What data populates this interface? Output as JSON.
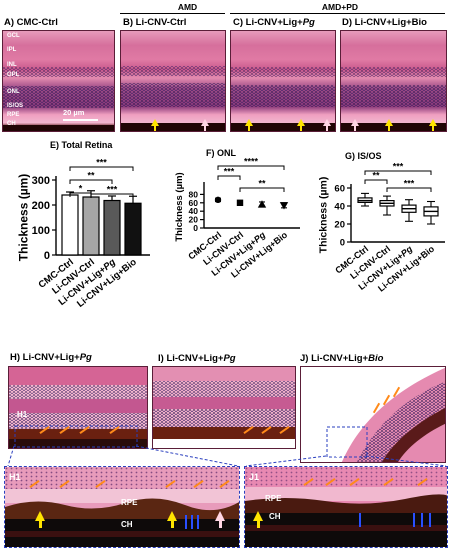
{
  "top_panels": {
    "group_amd": "AMD",
    "group_amd_pd": "AMD+PD",
    "panels": [
      {
        "letter": "A)",
        "title": "CMC-Ctrl"
      },
      {
        "letter": "B)",
        "title": "Li-CNV-Ctrl"
      },
      {
        "letter": "C)",
        "title": "Li-CNV+Lig+",
        "title_italic": "Pg"
      },
      {
        "letter": "D)",
        "title": "Li-CNV+Lig+Bio"
      }
    ],
    "layers": [
      "GCL",
      "IPL",
      "INL",
      "OPL",
      "ONL",
      "IS/OS",
      "RPE",
      "CH"
    ],
    "scale_bar": "20 µm"
  },
  "chart_data": [
    {
      "panel": "E)",
      "title": "Total Retina",
      "type": "bar",
      "ylabel": "Thickness (µm)",
      "ylim": [
        0,
        300
      ],
      "yticks": [
        0,
        100,
        200,
        300
      ],
      "categories": [
        "CMC-Ctrl",
        "Li-CNV-Ctrl",
        "Li-CNV+Lig+Pg",
        "Li-CNV+Lig+Bio"
      ],
      "values": [
        240,
        232,
        218,
        207
      ],
      "errors": [
        12,
        25,
        18,
        28
      ],
      "bar_colors": [
        "#ffffff",
        "#a6a6a6",
        "#595959",
        "#111111"
      ],
      "significance": [
        "*",
        "**",
        "***",
        "***"
      ]
    },
    {
      "panel": "F)",
      "title": "ONL",
      "type": "scatter",
      "ylabel": "Thickness (µm)",
      "ylim": [
        0,
        100
      ],
      "yticks": [
        0,
        20,
        40,
        60,
        80
      ],
      "categories": [
        "CMC-Ctrl",
        "Li-CNV-Ctrl",
        "Li-CNV+Lig+Pg",
        "Li-CNV+Lig+Bio"
      ],
      "values": [
        67,
        60,
        56,
        54
      ],
      "errors": [
        4,
        4,
        6,
        6
      ],
      "significance": [
        "***",
        "****",
        "**"
      ]
    },
    {
      "panel": "G)",
      "title": "IS/OS",
      "type": "box",
      "ylabel": "Thickness (µm)",
      "ylim": [
        0,
        60
      ],
      "yticks": [
        0,
        20,
        40,
        60
      ],
      "categories": [
        "CMC-Ctrl",
        "Li-CNV-Ctrl",
        "Li-CNV+Lig+Pg",
        "Li-CNV+Lig+Bio"
      ],
      "boxes": [
        {
          "min": 40,
          "q1": 44,
          "median": 46,
          "q3": 49,
          "max": 54
        },
        {
          "min": 30,
          "q1": 40,
          "median": 43,
          "q3": 46,
          "max": 51
        },
        {
          "min": 23,
          "q1": 33,
          "median": 37,
          "q3": 41,
          "max": 47
        },
        {
          "min": 20,
          "q1": 29,
          "median": 34,
          "q3": 39,
          "max": 45
        }
      ],
      "significance": [
        "**",
        "***",
        "***"
      ]
    }
  ],
  "bottom_panels": {
    "H": {
      "letter": "H)",
      "title": "Li-CNV+Lig+",
      "title_italic": "Pg",
      "inset": "H1"
    },
    "I": {
      "letter": "I)",
      "title": "Li-CNV+Lig+",
      "title_italic": "Pg"
    },
    "J": {
      "letter": "J)",
      "title": "Li-CNV+Lig+",
      "title_italic": "Bio",
      "inset": "J1"
    },
    "zoom_H1": {
      "label": "H1",
      "rpe": "RPE",
      "ch": "CH"
    },
    "zoom_J1": {
      "label": "J1",
      "rpe": "RPE",
      "ch": "CH"
    }
  }
}
